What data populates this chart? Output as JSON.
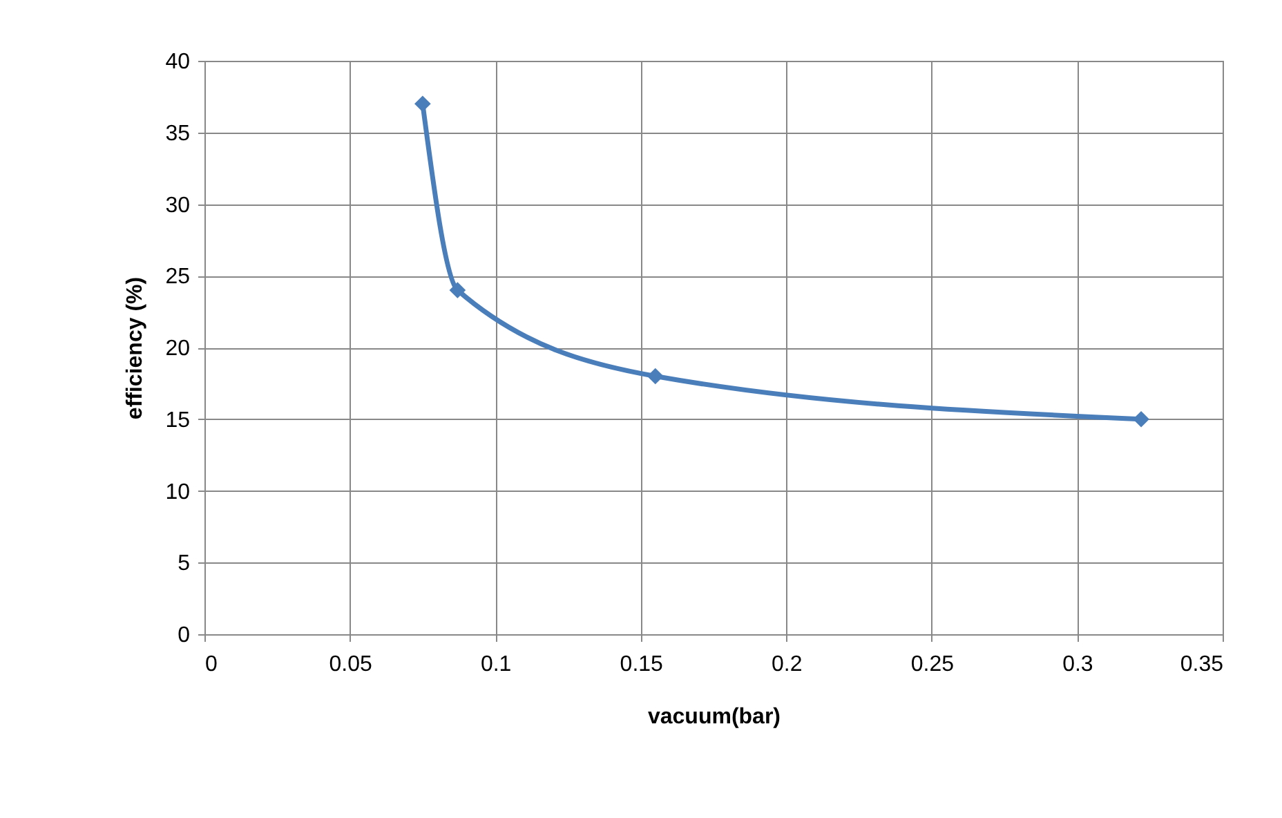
{
  "chart_data": {
    "type": "line",
    "xlabel": "vacuum(bar)",
    "ylabel": "efficiency (%)",
    "x": [
      0.075,
      0.087,
      0.155,
      0.322
    ],
    "series": [
      {
        "color": "#4a7ebb",
        "values": [
          37,
          24,
          18,
          15
        ]
      }
    ],
    "xlim": [
      0,
      0.35
    ],
    "xticks": [
      0,
      0.05,
      0.1,
      0.15,
      0.2,
      0.25,
      0.3,
      0.35
    ],
    "ylim": [
      0,
      40
    ],
    "yticks": [
      0,
      5,
      10,
      15,
      20,
      25,
      30,
      35,
      40
    ],
    "grid": true,
    "marker": "diamond",
    "line_style": "solid"
  }
}
